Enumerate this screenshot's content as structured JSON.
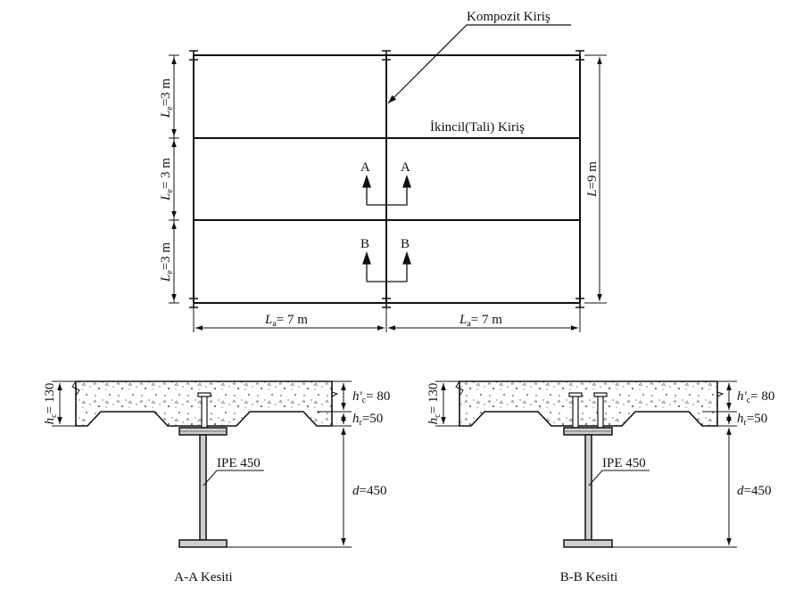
{
  "plan": {
    "callout_composite": "Kompozit Kiriş",
    "callout_secondary": "İkincil(Tali) Kiriş",
    "section_a": "A",
    "section_b": "B",
    "dim_le_letter": "L",
    "dim_le_sub": "e",
    "dim_le_top": "=3 m",
    "dim_le_mid": "= 3 m",
    "dim_le_bot": "=3 m",
    "dim_l_letter": "L",
    "dim_l_value": "=9 m",
    "dim_la_letter": "L",
    "dim_la_sub": "a",
    "dim_la_value": "= 7 m"
  },
  "section_aa": {
    "caption": "A-A Kesiti",
    "hc_letter": "h",
    "hc_sub": "c",
    "hc_value": "= 130",
    "hpc_letter": "h'",
    "hpc_sub": "c",
    "hpc_value": "= 80",
    "hr_letter": "h",
    "hr_sub": "r",
    "hr_value": "=50",
    "profile": "IPE 450",
    "d_letter": "d",
    "d_value": "=450"
  },
  "section_bb": {
    "caption": "B-B Kesiti",
    "hc_letter": "h",
    "hc_sub": "c",
    "hc_value": "= 130",
    "hpc_letter": "h'",
    "hpc_sub": "c",
    "hpc_value": "= 80",
    "hr_letter": "h",
    "hr_sub": "r",
    "hr_value": "=50",
    "profile": "IPE 450",
    "d_letter": "d",
    "d_value": "=450"
  }
}
